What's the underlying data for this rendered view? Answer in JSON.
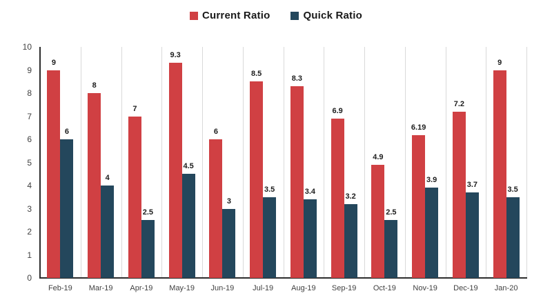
{
  "chart_data": {
    "type": "bar",
    "title": "",
    "xlabel": "",
    "ylabel": "",
    "categories": [
      "Feb-19",
      "Mar-19",
      "Apr-19",
      "May-19",
      "Jun-19",
      "Jul-19",
      "Aug-19",
      "Sep-19",
      "Oct-19",
      "Nov-19",
      "Dec-19",
      "Jan-20"
    ],
    "series": [
      {
        "name": "Current Ratio",
        "color": "#d04043",
        "values": [
          9,
          8,
          7,
          9.3,
          6,
          8.5,
          8.3,
          6.9,
          4.9,
          6.19,
          7.2,
          9
        ]
      },
      {
        "name": "Quick Ratio",
        "color": "#24475c",
        "values": [
          6,
          4,
          2.5,
          4.5,
          3,
          3.5,
          3.4,
          3.2,
          2.5,
          3.9,
          3.7,
          3.5
        ]
      }
    ],
    "data_labels": [
      "9",
      "8",
      "7",
      "9.3",
      "6",
      "8.5",
      "8.3",
      "6.9",
      "4.9",
      "6.19",
      "7.2",
      "9",
      "6",
      "4",
      "2.5",
      "4.5",
      "3",
      "3.5",
      "3.4",
      "3.2",
      "2.5",
      "3.9",
      "3.7",
      "3.5"
    ],
    "y_ticks": [
      "0",
      "1",
      "2",
      "3",
      "4",
      "5",
      "6",
      "7",
      "8",
      "9",
      "10"
    ],
    "ylim": [
      0,
      10
    ],
    "grid": "vertical category gridlines only",
    "legend_position": "top-center",
    "colors": {
      "current_ratio": "#d04043",
      "quick_ratio": "#24475c",
      "axis_line": "#2b2b2b",
      "gridline": "#d9d9d9",
      "tick_text": "#3f3f3f",
      "data_label_text": "#1c1c1c",
      "background": "#ffffff"
    }
  }
}
